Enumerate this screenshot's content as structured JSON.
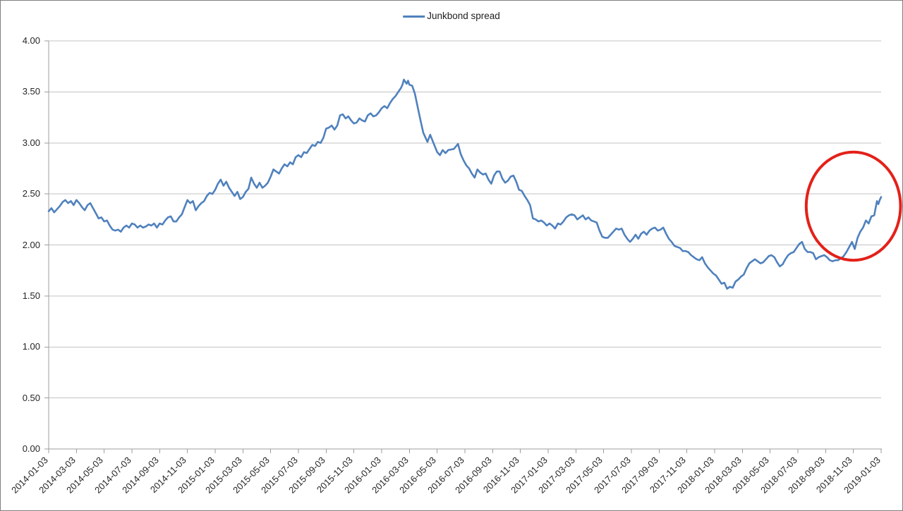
{
  "legend": {
    "label": "Junkbond spread"
  },
  "colors": {
    "series": "#4F81BD",
    "annotation": "#E32119",
    "grid": "#C3C3C3",
    "axis": "#9E9E9E",
    "tick": "#9E9E9E",
    "text": "#262626",
    "border": "#7F7F7F",
    "background": "#FFFFFF"
  },
  "chart_data": {
    "type": "line",
    "title": "",
    "xlabel": "",
    "ylabel": "",
    "ylim": [
      0,
      4
    ],
    "y_tick_step": 0.5,
    "y_tick_labels": [
      "0.00",
      "0.50",
      "1.00",
      "1.50",
      "2.00",
      "2.50",
      "3.00",
      "3.50",
      "4.00"
    ],
    "x_range_months": 60,
    "x_tick_interval_months": 2,
    "x_tick_labels": [
      "2014-01-03",
      "2014-03-03",
      "2014-05-03",
      "2014-07-03",
      "2014-09-03",
      "2014-11-03",
      "2015-01-03",
      "2015-03-03",
      "2015-05-03",
      "2015-07-03",
      "2015-09-03",
      "2015-11-03",
      "2016-01-03",
      "2016-03-03",
      "2016-05-03",
      "2016-07-03",
      "2016-09-03",
      "2016-11-03",
      "2017-01-03",
      "2017-03-03",
      "2017-05-03",
      "2017-07-03",
      "2017-09-03",
      "2017-11-03",
      "2018-01-03",
      "2018-03-03",
      "2018-05-03",
      "2018-07-03",
      "2018-09-03",
      "2018-11-03",
      "2019-01-03"
    ],
    "grid": "horizontal",
    "legend_position": "top-center",
    "series": [
      {
        "name": "Junkbond spread",
        "x_unit": "months since 2014-01-03",
        "points": [
          [
            0,
            2.33
          ],
          [
            0.2,
            2.36
          ],
          [
            0.4,
            2.32
          ],
          [
            0.6,
            2.35
          ],
          [
            0.8,
            2.38
          ],
          [
            1,
            2.42
          ],
          [
            1.2,
            2.44
          ],
          [
            1.4,
            2.41
          ],
          [
            1.6,
            2.43
          ],
          [
            1.8,
            2.39
          ],
          [
            2,
            2.44
          ],
          [
            2.2,
            2.41
          ],
          [
            2.4,
            2.37
          ],
          [
            2.6,
            2.34
          ],
          [
            2.8,
            2.39
          ],
          [
            3,
            2.41
          ],
          [
            3.2,
            2.36
          ],
          [
            3.4,
            2.31
          ],
          [
            3.6,
            2.26
          ],
          [
            3.8,
            2.27
          ],
          [
            4,
            2.23
          ],
          [
            4.2,
            2.24
          ],
          [
            4.4,
            2.19
          ],
          [
            4.6,
            2.15
          ],
          [
            4.8,
            2.14
          ],
          [
            5,
            2.15
          ],
          [
            5.2,
            2.13
          ],
          [
            5.4,
            2.17
          ],
          [
            5.6,
            2.19
          ],
          [
            5.8,
            2.17
          ],
          [
            6,
            2.21
          ],
          [
            6.2,
            2.2
          ],
          [
            6.4,
            2.17
          ],
          [
            6.6,
            2.19
          ],
          [
            6.8,
            2.17
          ],
          [
            7,
            2.18
          ],
          [
            7.2,
            2.2
          ],
          [
            7.4,
            2.19
          ],
          [
            7.6,
            2.21
          ],
          [
            7.8,
            2.17
          ],
          [
            8,
            2.21
          ],
          [
            8.2,
            2.2
          ],
          [
            8.4,
            2.24
          ],
          [
            8.6,
            2.27
          ],
          [
            8.8,
            2.28
          ],
          [
            9,
            2.23
          ],
          [
            9.2,
            2.23
          ],
          [
            9.4,
            2.27
          ],
          [
            9.6,
            2.3
          ],
          [
            9.8,
            2.37
          ],
          [
            10,
            2.44
          ],
          [
            10.2,
            2.41
          ],
          [
            10.4,
            2.43
          ],
          [
            10.6,
            2.34
          ],
          [
            10.8,
            2.38
          ],
          [
            11,
            2.41
          ],
          [
            11.2,
            2.43
          ],
          [
            11.4,
            2.48
          ],
          [
            11.6,
            2.51
          ],
          [
            11.8,
            2.5
          ],
          [
            12,
            2.54
          ],
          [
            12.2,
            2.6
          ],
          [
            12.4,
            2.64
          ],
          [
            12.6,
            2.58
          ],
          [
            12.8,
            2.62
          ],
          [
            13,
            2.56
          ],
          [
            13.2,
            2.52
          ],
          [
            13.4,
            2.48
          ],
          [
            13.6,
            2.52
          ],
          [
            13.8,
            2.45
          ],
          [
            14,
            2.47
          ],
          [
            14.2,
            2.52
          ],
          [
            14.4,
            2.55
          ],
          [
            14.6,
            2.66
          ],
          [
            14.8,
            2.6
          ],
          [
            15,
            2.56
          ],
          [
            15.2,
            2.61
          ],
          [
            15.4,
            2.56
          ],
          [
            15.6,
            2.58
          ],
          [
            15.8,
            2.61
          ],
          [
            16,
            2.67
          ],
          [
            16.2,
            2.74
          ],
          [
            16.4,
            2.72
          ],
          [
            16.6,
            2.7
          ],
          [
            16.8,
            2.75
          ],
          [
            17,
            2.79
          ],
          [
            17.2,
            2.77
          ],
          [
            17.4,
            2.81
          ],
          [
            17.6,
            2.79
          ],
          [
            17.8,
            2.86
          ],
          [
            18,
            2.88
          ],
          [
            18.2,
            2.86
          ],
          [
            18.4,
            2.91
          ],
          [
            18.6,
            2.9
          ],
          [
            18.8,
            2.94
          ],
          [
            19,
            2.98
          ],
          [
            19.2,
            2.97
          ],
          [
            19.4,
            3.01
          ],
          [
            19.6,
            3
          ],
          [
            19.8,
            3.05
          ],
          [
            20,
            3.14
          ],
          [
            20.2,
            3.15
          ],
          [
            20.4,
            3.17
          ],
          [
            20.6,
            3.13
          ],
          [
            20.8,
            3.17
          ],
          [
            21,
            3.27
          ],
          [
            21.2,
            3.28
          ],
          [
            21.4,
            3.24
          ],
          [
            21.6,
            3.26
          ],
          [
            21.8,
            3.22
          ],
          [
            22,
            3.19
          ],
          [
            22.2,
            3.2
          ],
          [
            22.4,
            3.24
          ],
          [
            22.6,
            3.22
          ],
          [
            22.8,
            3.21
          ],
          [
            23,
            3.27
          ],
          [
            23.2,
            3.29
          ],
          [
            23.4,
            3.26
          ],
          [
            23.6,
            3.27
          ],
          [
            23.8,
            3.3
          ],
          [
            24,
            3.34
          ],
          [
            24.2,
            3.36
          ],
          [
            24.4,
            3.34
          ],
          [
            24.6,
            3.39
          ],
          [
            24.8,
            3.43
          ],
          [
            25,
            3.46
          ],
          [
            25.2,
            3.5
          ],
          [
            25.4,
            3.54
          ],
          [
            25.5,
            3.57
          ],
          [
            25.6,
            3.62
          ],
          [
            25.8,
            3.58
          ],
          [
            25.9,
            3.61
          ],
          [
            26,
            3.57
          ],
          [
            26.2,
            3.56
          ],
          [
            26.4,
            3.48
          ],
          [
            26.6,
            3.35
          ],
          [
            26.8,
            3.22
          ],
          [
            27,
            3.1
          ],
          [
            27.3,
            3.01
          ],
          [
            27.5,
            3.08
          ],
          [
            27.7,
            3.01
          ],
          [
            28,
            2.91
          ],
          [
            28.2,
            2.88
          ],
          [
            28.4,
            2.93
          ],
          [
            28.6,
            2.9
          ],
          [
            28.8,
            2.93
          ],
          [
            29.2,
            2.94
          ],
          [
            29.5,
            2.99
          ],
          [
            29.7,
            2.89
          ],
          [
            29.9,
            2.83
          ],
          [
            30.1,
            2.78
          ],
          [
            30.3,
            2.75
          ],
          [
            30.5,
            2.7
          ],
          [
            30.7,
            2.66
          ],
          [
            30.9,
            2.74
          ],
          [
            31.1,
            2.71
          ],
          [
            31.3,
            2.69
          ],
          [
            31.5,
            2.7
          ],
          [
            31.7,
            2.64
          ],
          [
            31.9,
            2.6
          ],
          [
            32.1,
            2.68
          ],
          [
            32.3,
            2.72
          ],
          [
            32.5,
            2.72
          ],
          [
            32.7,
            2.65
          ],
          [
            32.9,
            2.61
          ],
          [
            33.1,
            2.63
          ],
          [
            33.3,
            2.67
          ],
          [
            33.5,
            2.68
          ],
          [
            33.7,
            2.62
          ],
          [
            33.9,
            2.54
          ],
          [
            34.1,
            2.53
          ],
          [
            34.3,
            2.48
          ],
          [
            34.5,
            2.44
          ],
          [
            34.7,
            2.39
          ],
          [
            34.9,
            2.26
          ],
          [
            35.1,
            2.25
          ],
          [
            35.3,
            2.23
          ],
          [
            35.5,
            2.24
          ],
          [
            35.7,
            2.22
          ],
          [
            35.9,
            2.19
          ],
          [
            36.1,
            2.21
          ],
          [
            36.3,
            2.19
          ],
          [
            36.5,
            2.16
          ],
          [
            36.7,
            2.21
          ],
          [
            36.9,
            2.2
          ],
          [
            37.1,
            2.23
          ],
          [
            37.3,
            2.27
          ],
          [
            37.5,
            2.29
          ],
          [
            37.7,
            2.3
          ],
          [
            37.9,
            2.29
          ],
          [
            38.1,
            2.25
          ],
          [
            38.3,
            2.27
          ],
          [
            38.5,
            2.29
          ],
          [
            38.7,
            2.25
          ],
          [
            38.9,
            2.27
          ],
          [
            39.1,
            2.24
          ],
          [
            39.3,
            2.23
          ],
          [
            39.5,
            2.22
          ],
          [
            39.7,
            2.14
          ],
          [
            39.9,
            2.08
          ],
          [
            40.1,
            2.07
          ],
          [
            40.3,
            2.07
          ],
          [
            40.5,
            2.1
          ],
          [
            40.7,
            2.13
          ],
          [
            40.9,
            2.16
          ],
          [
            41.1,
            2.15
          ],
          [
            41.3,
            2.16
          ],
          [
            41.5,
            2.1
          ],
          [
            41.7,
            2.06
          ],
          [
            41.9,
            2.03
          ],
          [
            42.1,
            2.06
          ],
          [
            42.3,
            2.1
          ],
          [
            42.5,
            2.06
          ],
          [
            42.7,
            2.11
          ],
          [
            42.9,
            2.13
          ],
          [
            43.1,
            2.1
          ],
          [
            43.3,
            2.14
          ],
          [
            43.5,
            2.16
          ],
          [
            43.7,
            2.17
          ],
          [
            43.9,
            2.14
          ],
          [
            44.1,
            2.15
          ],
          [
            44.3,
            2.17
          ],
          [
            44.5,
            2.11
          ],
          [
            44.7,
            2.06
          ],
          [
            44.9,
            2.03
          ],
          [
            45.1,
            1.99
          ],
          [
            45.3,
            1.98
          ],
          [
            45.5,
            1.97
          ],
          [
            45.7,
            1.94
          ],
          [
            45.9,
            1.94
          ],
          [
            46.1,
            1.93
          ],
          [
            46.3,
            1.9
          ],
          [
            46.5,
            1.88
          ],
          [
            46.7,
            1.86
          ],
          [
            46.9,
            1.85
          ],
          [
            47.1,
            1.88
          ],
          [
            47.3,
            1.82
          ],
          [
            47.5,
            1.78
          ],
          [
            47.7,
            1.75
          ],
          [
            47.9,
            1.72
          ],
          [
            48.1,
            1.7
          ],
          [
            48.3,
            1.66
          ],
          [
            48.5,
            1.62
          ],
          [
            48.7,
            1.63
          ],
          [
            48.9,
            1.57
          ],
          [
            49.1,
            1.59
          ],
          [
            49.3,
            1.58
          ],
          [
            49.5,
            1.64
          ],
          [
            49.7,
            1.66
          ],
          [
            49.9,
            1.69
          ],
          [
            50.1,
            1.71
          ],
          [
            50.3,
            1.77
          ],
          [
            50.5,
            1.82
          ],
          [
            50.7,
            1.84
          ],
          [
            50.9,
            1.86
          ],
          [
            51.1,
            1.84
          ],
          [
            51.3,
            1.82
          ],
          [
            51.5,
            1.83
          ],
          [
            51.7,
            1.86
          ],
          [
            51.9,
            1.89
          ],
          [
            52.1,
            1.9
          ],
          [
            52.3,
            1.88
          ],
          [
            52.5,
            1.83
          ],
          [
            52.7,
            1.79
          ],
          [
            52.9,
            1.81
          ],
          [
            53.1,
            1.86
          ],
          [
            53.3,
            1.9
          ],
          [
            53.5,
            1.92
          ],
          [
            53.7,
            1.93
          ],
          [
            53.9,
            1.97
          ],
          [
            54.1,
            2.01
          ],
          [
            54.3,
            2.03
          ],
          [
            54.5,
            1.96
          ],
          [
            54.7,
            1.93
          ],
          [
            54.9,
            1.93
          ],
          [
            55.1,
            1.92
          ],
          [
            55.3,
            1.86
          ],
          [
            55.5,
            1.88
          ],
          [
            55.7,
            1.89
          ],
          [
            55.9,
            1.9
          ],
          [
            56.1,
            1.88
          ],
          [
            56.3,
            1.85
          ],
          [
            56.5,
            1.84
          ],
          [
            56.7,
            1.85
          ],
          [
            56.9,
            1.85
          ],
          [
            57.1,
            1.87
          ],
          [
            57.3,
            1.89
          ],
          [
            57.5,
            1.93
          ],
          [
            57.7,
            1.98
          ],
          [
            57.9,
            2.03
          ],
          [
            58.1,
            1.96
          ],
          [
            58.3,
            2.07
          ],
          [
            58.5,
            2.13
          ],
          [
            58.7,
            2.17
          ],
          [
            58.9,
            2.24
          ],
          [
            59.1,
            2.21
          ],
          [
            59.3,
            2.28
          ],
          [
            59.5,
            2.29
          ],
          [
            59.7,
            2.43
          ],
          [
            59.8,
            2.4
          ],
          [
            59.9,
            2.44
          ],
          [
            60,
            2.47
          ]
        ]
      }
    ],
    "annotation": {
      "type": "ellipse",
      "purpose": "highlights the spread rising at the end of 2018",
      "x_center_months": 58.0,
      "y_center_value": 2.38,
      "x_radius_months": 3.4,
      "y_radius_value": 0.53,
      "stroke_width": 4
    }
  }
}
